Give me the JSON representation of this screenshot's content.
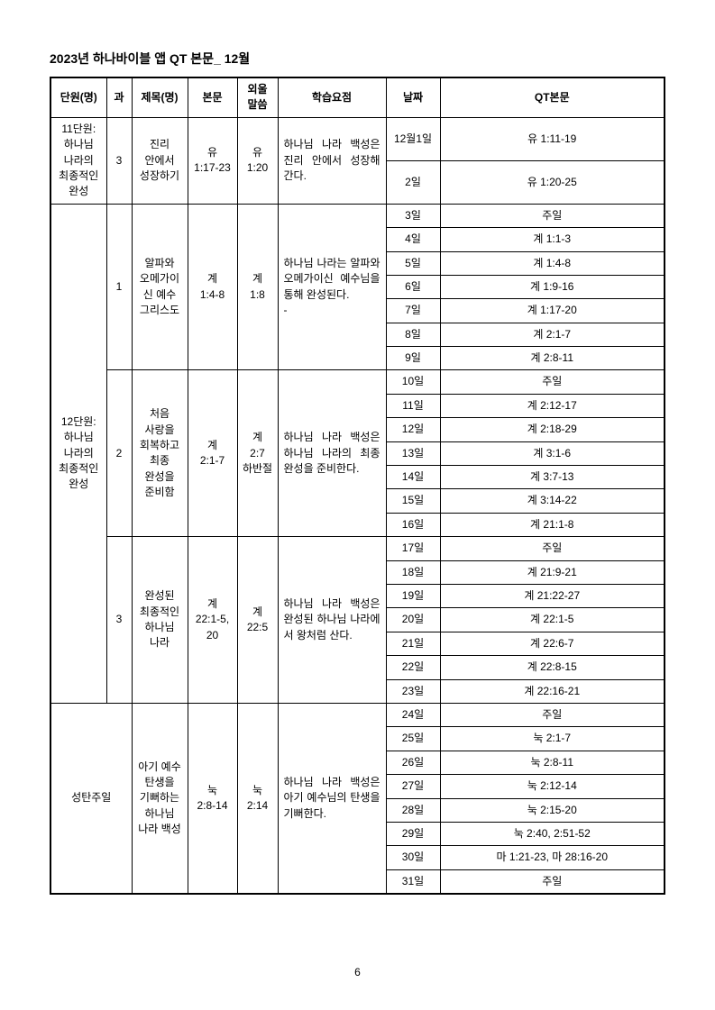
{
  "title": "2023년 하나바이블 앱 QT 본문_ 12월",
  "page_number": "6",
  "headers": {
    "unit": "단원(명)",
    "gwa": "과",
    "lesson_title": "제목(명)",
    "text": "본문",
    "memory": "외울\n말씀",
    "point": "학습요점",
    "date": "날짜",
    "qt": "QT본문"
  },
  "sections": [
    {
      "unit": "11단원:\n하나님\n나라의\n최종적인\n완성",
      "lessons": [
        {
          "gwa": "3",
          "lesson_title": "진리\n안에서\n성장하기",
          "text": "유\n1:17-23",
          "memory": "유\n1:20",
          "point": "하나님 나라 백성은 진리 안에서 성장해 간다.",
          "rows": [
            {
              "date": "12월1일",
              "qt": "유 1:11-19"
            },
            {
              "date": "2일",
              "qt": "유 1:20-25"
            }
          ]
        }
      ]
    },
    {
      "unit": "12단원:\n하나님\n나라의\n최종적인\n완성",
      "lessons": [
        {
          "gwa": "1",
          "lesson_title": "알파와\n오메가이\n신 예수\n그리스도",
          "text": "계\n1:4-8",
          "memory": "계\n1:8",
          "point": "하나님 나라는 알파와 오메가이신 예수님을 통해 완성된다.\n-",
          "rows": [
            {
              "date": "3일",
              "qt": "주일"
            },
            {
              "date": "4일",
              "qt": "계 1:1-3"
            },
            {
              "date": "5일",
              "qt": "계 1:4-8"
            },
            {
              "date": "6일",
              "qt": "계 1:9-16"
            },
            {
              "date": "7일",
              "qt": "계 1:17-20"
            },
            {
              "date": "8일",
              "qt": "계 2:1-7"
            },
            {
              "date": "9일",
              "qt": "계 2:8-11"
            }
          ]
        },
        {
          "gwa": "2",
          "lesson_title": "처음\n사랑을\n회복하고\n최종\n완성을\n준비함",
          "text": "계\n2:1-7",
          "memory": "계\n2:7\n하반절",
          "point": "하나님 나라 백성은 하나님 나라의 최종 완성을 준비한다.",
          "rows": [
            {
              "date": "10일",
              "qt": "주일"
            },
            {
              "date": "11일",
              "qt": "계 2:12-17"
            },
            {
              "date": "12일",
              "qt": "계 2:18-29"
            },
            {
              "date": "13일",
              "qt": "계 3:1-6"
            },
            {
              "date": "14일",
              "qt": "계 3:7-13"
            },
            {
              "date": "15일",
              "qt": "계 3:14-22"
            },
            {
              "date": "16일",
              "qt": "계 21:1-8"
            }
          ]
        },
        {
          "gwa": "3",
          "lesson_title": "완성된\n최종적인\n하나님\n나라",
          "text": "계\n22:1-5,\n20",
          "memory": "계\n22:5",
          "point": "하나님 나라 백성은 완성된 하나님 나라에서 왕처럼 산다.",
          "rows": [
            {
              "date": "17일",
              "qt": "주일"
            },
            {
              "date": "18일",
              "qt": "계 21:9-21"
            },
            {
              "date": "19일",
              "qt": "계 21:22-27"
            },
            {
              "date": "20일",
              "qt": "계 22:1-5"
            },
            {
              "date": "21일",
              "qt": "계 22:6-7"
            },
            {
              "date": "22일",
              "qt": "계 22:8-15"
            },
            {
              "date": "23일",
              "qt": "계 22:16-21"
            }
          ]
        }
      ]
    },
    {
      "unit": "성탄주일",
      "unit_colspan": 2,
      "lessons": [
        {
          "gwa": null,
          "lesson_title": "아기 예수\n탄생을\n기뻐하는\n하나님\n나라 백성",
          "text": "눅\n2:8-14",
          "memory": "눅\n2:14",
          "point": "하나님 나라 백성은 아기 예수님의 탄생을 기뻐한다.",
          "rows": [
            {
              "date": "24일",
              "qt": "주일"
            },
            {
              "date": "25일",
              "qt": "눅 2:1-7"
            },
            {
              "date": "26일",
              "qt": "눅 2:8-11"
            },
            {
              "date": "27일",
              "qt": "눅 2:12-14"
            },
            {
              "date": "28일",
              "qt": "눅 2:15-20"
            },
            {
              "date": "29일",
              "qt": "눅 2:40, 2:51-52"
            },
            {
              "date": "30일",
              "qt": "마 1:21-23, 마 28:16-20"
            },
            {
              "date": "31일",
              "qt": "주일"
            }
          ]
        }
      ]
    }
  ]
}
